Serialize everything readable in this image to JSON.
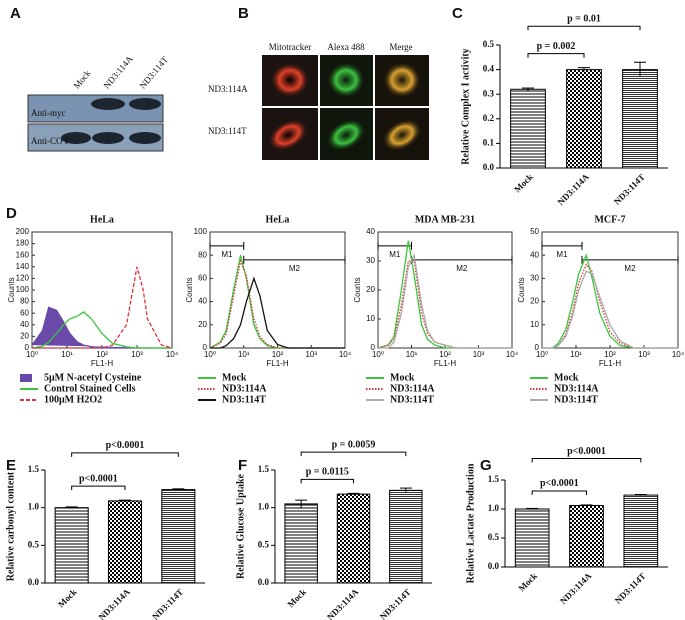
{
  "panel_labels": [
    "A",
    "B",
    "C",
    "D",
    "E",
    "F",
    "G"
  ],
  "blot": {
    "lanes": [
      "Mock",
      "ND3:114A",
      "ND3:114T"
    ],
    "rows": [
      "Anti-myc",
      "Anti-CO I"
    ]
  },
  "microscopy": {
    "columns": [
      "Mitotracker",
      "Alexa 488",
      "Merge"
    ],
    "rows": [
      "ND3:114A",
      "ND3:114T"
    ]
  },
  "chart_data": [
    {
      "type": "bar",
      "ylabel": "Relative Complex I activity",
      "categories": [
        "Mock",
        "ND3:114A",
        "ND3:114T"
      ],
      "values": [
        0.32,
        0.4,
        0.4
      ],
      "errors": [
        0.005,
        0.008,
        0.03
      ],
      "ylim": [
        0,
        0.5
      ],
      "yticks": [
        {
          "value": 0,
          "label": "0.0"
        },
        0.1,
        0.2,
        0.3,
        0.4,
        0.5
      ],
      "annotations": [
        "p = 0.002",
        "p = 0.01"
      ],
      "color": "#000000"
    },
    {
      "type": "line",
      "title": "HeLa",
      "xlabel": "FL1-H",
      "ylabel": "Counts",
      "log_x": true,
      "x": [
        1,
        2,
        3,
        5,
        8,
        12,
        20,
        30,
        50,
        100,
        200,
        500,
        1000,
        1500,
        2000,
        5000,
        10000
      ],
      "xlim": [
        1,
        10000
      ],
      "xticks": [
        {
          "value": 1,
          "label": "10⁰"
        },
        {
          "value": 10,
          "label": "10¹"
        },
        {
          "value": 100,
          "label": "10²"
        },
        {
          "value": 1000,
          "label": "10³"
        },
        {
          "value": 10000,
          "label": "10⁴"
        }
      ],
      "ylim": [
        0,
        200
      ],
      "yticks": [
        0,
        20,
        40,
        60,
        80,
        100,
        120,
        140,
        160,
        180,
        200
      ],
      "gates": [],
      "series": [
        {
          "name": "5μM N-acetyl Cysteine",
          "color": "#6a4aa8",
          "fill": true,
          "dash": "solid",
          "values": [
            5,
            30,
            70,
            65,
            45,
            25,
            10,
            5,
            2,
            0,
            0,
            0,
            0,
            0,
            0,
            0,
            0
          ]
        },
        {
          "name": "Control Stained Cells",
          "color": "#3cc63c",
          "fill": false,
          "dash": "solid",
          "values": [
            0,
            3,
            10,
            25,
            40,
            50,
            55,
            62,
            50,
            25,
            8,
            2,
            0,
            0,
            0,
            0,
            0
          ]
        },
        {
          "name": "100μM H2O2",
          "color": "#e0303a",
          "fill": false,
          "dash": "dashed",
          "values": [
            0,
            0,
            0,
            0,
            0,
            0,
            0,
            0,
            0,
            0,
            5,
            40,
            140,
            100,
            50,
            5,
            0
          ]
        }
      ]
    },
    {
      "type": "line",
      "title": "HeLa",
      "xlabel": "FL1-H",
      "ylabel": "Counts",
      "log_x": true,
      "x": [
        1,
        2,
        3,
        5,
        8,
        12,
        20,
        30,
        50,
        100,
        200,
        500,
        1000,
        1500,
        2000,
        5000,
        10000
      ],
      "xlim": [
        1,
        10000
      ],
      "xticks": [
        {
          "value": 1,
          "label": "10⁰"
        },
        {
          "value": 10,
          "label": "10¹"
        },
        {
          "value": 100,
          "label": "10²"
        },
        {
          "value": 1000,
          "label": "10³"
        },
        {
          "value": 10000,
          "label": "10⁴"
        }
      ],
      "ylim": [
        0,
        100
      ],
      "yticks": [
        0,
        20,
        40,
        60,
        80,
        100
      ],
      "gates": [
        {
          "label": "M1",
          "range": [
            1,
            10
          ]
        },
        {
          "label": "M2",
          "range": [
            10,
            10000
          ]
        }
      ],
      "series": [
        {
          "name": "Mock",
          "color": "#3cc63c",
          "fill": false,
          "dash": "solid",
          "values": [
            0,
            5,
            15,
            50,
            80,
            60,
            20,
            8,
            2,
            0,
            0,
            0,
            0,
            0,
            0,
            0,
            0
          ]
        },
        {
          "name": "ND3:114A",
          "color": "#e0303a",
          "fill": false,
          "dash": "dotted",
          "values": [
            0,
            4,
            12,
            45,
            75,
            62,
            25,
            10,
            3,
            0,
            0,
            0,
            0,
            0,
            0,
            0,
            0
          ]
        },
        {
          "name": "ND3:114T",
          "color": "#111111",
          "fill": false,
          "dash": "solid",
          "values": [
            0,
            0,
            2,
            8,
            20,
            40,
            60,
            45,
            15,
            3,
            0,
            0,
            0,
            0,
            0,
            0,
            0
          ]
        }
      ]
    },
    {
      "type": "line",
      "title": "MDA MB-231",
      "xlabel": "FL1-H",
      "ylabel": "Counts",
      "log_x": true,
      "x": [
        1,
        2,
        3,
        5,
        8,
        12,
        20,
        30,
        50,
        100,
        200,
        500,
        1000,
        1500,
        2000,
        5000,
        10000
      ],
      "xlim": [
        1,
        10000
      ],
      "xticks": [
        {
          "value": 1,
          "label": "10⁰"
        },
        {
          "value": 10,
          "label": "10¹"
        },
        {
          "value": 100,
          "label": "10²"
        },
        {
          "value": 1000,
          "label": "10³"
        },
        {
          "value": 10000,
          "label": "10⁴"
        }
      ],
      "ylim": [
        0,
        40
      ],
      "yticks": [
        0,
        10,
        20,
        30,
        40
      ],
      "gates": [
        {
          "label": "M1",
          "range": [
            1,
            10
          ]
        },
        {
          "label": "M2",
          "range": [
            10,
            10000
          ]
        }
      ],
      "series": [
        {
          "name": "Mock",
          "color": "#3cc63c",
          "fill": false,
          "dash": "solid",
          "values": [
            0,
            1,
            4,
            20,
            37,
            25,
            8,
            3,
            1,
            0,
            0,
            0,
            0,
            0,
            0,
            0,
            0
          ]
        },
        {
          "name": "ND3:114A",
          "color": "#e0303a",
          "fill": false,
          "dash": "dotted",
          "values": [
            0,
            1,
            3,
            15,
            30,
            30,
            12,
            5,
            2,
            1,
            0,
            0,
            0,
            0,
            0,
            0,
            0
          ]
        },
        {
          "name": "ND3:114T",
          "color": "#aaaaaa",
          "fill": false,
          "dash": "solid",
          "values": [
            0,
            0,
            2,
            12,
            28,
            32,
            15,
            6,
            2,
            1,
            0,
            0,
            0,
            0,
            0,
            0,
            0
          ]
        }
      ]
    },
    {
      "type": "line",
      "title": "MCF-7",
      "xlabel": "FL1-H",
      "ylabel": "Counts",
      "log_x": true,
      "x": [
        1,
        2,
        3,
        5,
        8,
        12,
        20,
        30,
        50,
        100,
        200,
        500,
        1000,
        1500,
        2000,
        5000,
        10000
      ],
      "xlim": [
        1,
        10000
      ],
      "xticks": [
        {
          "value": 1,
          "label": "10⁰"
        },
        {
          "value": 10,
          "label": "10¹"
        },
        {
          "value": 100,
          "label": "10²"
        },
        {
          "value": 1000,
          "label": "10³"
        },
        {
          "value": 10000,
          "label": "10⁴"
        }
      ],
      "ylim": [
        0,
        50
      ],
      "yticks": [
        0,
        10,
        20,
        30,
        40,
        50
      ],
      "gates": [
        {
          "label": "M1",
          "range": [
            1,
            15
          ]
        },
        {
          "label": "M2",
          "range": [
            15,
            10000
          ]
        }
      ],
      "series": [
        {
          "name": "Mock",
          "color": "#3cc63c",
          "fill": false,
          "dash": "solid",
          "values": [
            0,
            0,
            2,
            8,
            20,
            32,
            40,
            30,
            15,
            5,
            1,
            0,
            0,
            0,
            0,
            0,
            0
          ]
        },
        {
          "name": "ND3:114A",
          "color": "#e0303a",
          "fill": false,
          "dash": "dotted",
          "values": [
            0,
            0,
            1,
            6,
            16,
            28,
            36,
            33,
            20,
            7,
            2,
            0,
            0,
            0,
            0,
            0,
            0
          ]
        },
        {
          "name": "ND3:114T",
          "color": "#aaaaaa",
          "fill": false,
          "dash": "solid",
          "values": [
            0,
            0,
            1,
            5,
            14,
            25,
            33,
            32,
            22,
            10,
            3,
            0,
            0,
            0,
            0,
            0,
            0
          ]
        }
      ]
    },
    {
      "type": "bar",
      "ylabel": "Relative carbonyl content",
      "categories": [
        "Mock",
        "ND3:114A",
        "ND3:114T"
      ],
      "values": [
        1.0,
        1.09,
        1.24
      ],
      "errors": [
        0.01,
        0.01,
        0.01
      ],
      "ylim": [
        0,
        1.5
      ],
      "yticks": [
        {
          "value": 0,
          "label": "0.0"
        },
        0.5,
        {
          "value": 1,
          "label": "1.0"
        },
        1.5
      ],
      "annotations": [
        "p<0.0001",
        "p<0.0001"
      ],
      "color": "#000000"
    },
    {
      "type": "bar",
      "ylabel": "Relative Glucose Uptake",
      "categories": [
        "Mock",
        "ND3:114A",
        "ND3:114T"
      ],
      "values": [
        1.05,
        1.18,
        1.23
      ],
      "errors": [
        0.05,
        0.01,
        0.03
      ],
      "ylim": [
        0,
        1.5
      ],
      "yticks": [
        {
          "value": 0,
          "label": "0.0"
        },
        0.5,
        {
          "value": 1,
          "label": "1.0"
        },
        1.5
      ],
      "annotations": [
        "p = 0.0115",
        "p = 0.0059"
      ],
      "color": "#000000"
    },
    {
      "type": "bar",
      "ylabel": "Relative Lactate Production",
      "categories": [
        "Mock",
        "ND3:114A",
        "ND3:114T"
      ],
      "values": [
        1.0,
        1.06,
        1.24
      ],
      "errors": [
        0.01,
        0.01,
        0.01
      ],
      "ylim": [
        0,
        1.5
      ],
      "yticks": [
        {
          "value": 0,
          "label": "0.0"
        },
        0.5,
        {
          "value": 1,
          "label": "1.0"
        },
        1.5
      ],
      "annotations": [
        "p<0.0001",
        "p<0.0001"
      ],
      "color": "#000000"
    }
  ]
}
